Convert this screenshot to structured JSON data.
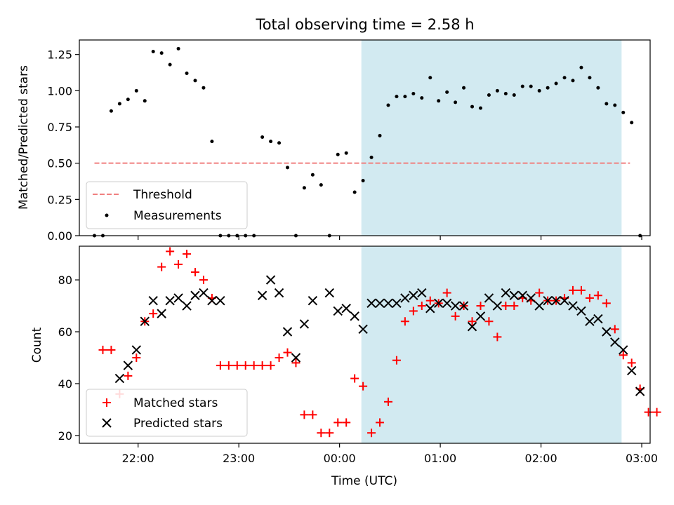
{
  "chart_data": [
    {
      "type": "scatter",
      "title": "Total observing time = 2.58 h",
      "xlabel": "",
      "ylabel": "Matched/Predicted stars",
      "ylim": [
        0,
        1.35
      ],
      "xlim": [
        "21:25",
        "03:05"
      ],
      "yticks": [
        "0.00",
        "0.25",
        "0.50",
        "0.75",
        "1.00",
        "1.25"
      ],
      "legend_position": "lower-left",
      "shaded_span": {
        "start": "00:13",
        "end": "02:48",
        "color": "#add8e6"
      },
      "threshold": {
        "name": "Threshold",
        "value": 0.5,
        "x_start": "21:34",
        "x_end": "02:53",
        "color": "#f08080"
      },
      "series": [
        {
          "name": "Measurements",
          "color": "#000000",
          "points": [
            [
              "21:34",
              0.0
            ],
            [
              "21:39",
              0.0
            ],
            [
              "21:44",
              0.86
            ],
            [
              "21:49",
              0.91
            ],
            [
              "21:54",
              0.94
            ],
            [
              "21:59",
              1.0
            ],
            [
              "22:04",
              0.93
            ],
            [
              "22:09",
              1.27
            ],
            [
              "22:14",
              1.26
            ],
            [
              "22:19",
              1.18
            ],
            [
              "22:24",
              1.29
            ],
            [
              "22:29",
              1.12
            ],
            [
              "22:34",
              1.07
            ],
            [
              "22:39",
              1.02
            ],
            [
              "22:44",
              0.65
            ],
            [
              "22:49",
              0.0
            ],
            [
              "22:54",
              0.0
            ],
            [
              "22:59",
              0.0
            ],
            [
              "23:04",
              0.0
            ],
            [
              "23:09",
              0.0
            ],
            [
              "23:14",
              0.68
            ],
            [
              "23:19",
              0.65
            ],
            [
              "23:24",
              0.64
            ],
            [
              "23:29",
              0.47
            ],
            [
              "23:34",
              0.0
            ],
            [
              "23:39",
              0.33
            ],
            [
              "23:44",
              0.42
            ],
            [
              "23:49",
              0.35
            ],
            [
              "23:54",
              0.0
            ],
            [
              "23:59",
              0.56
            ],
            [
              "00:04",
              0.57
            ],
            [
              "00:09",
              0.3
            ],
            [
              "00:14",
              0.38
            ],
            [
              "00:19",
              0.54
            ],
            [
              "00:24",
              0.69
            ],
            [
              "00:29",
              0.9
            ],
            [
              "00:34",
              0.96
            ],
            [
              "00:39",
              0.96
            ],
            [
              "00:44",
              0.98
            ],
            [
              "00:49",
              0.95
            ],
            [
              "00:54",
              1.09
            ],
            [
              "00:59",
              0.93
            ],
            [
              "01:04",
              0.99
            ],
            [
              "01:09",
              0.92
            ],
            [
              "01:14",
              1.02
            ],
            [
              "01:19",
              0.89
            ],
            [
              "01:24",
              0.88
            ],
            [
              "01:29",
              0.97
            ],
            [
              "01:34",
              1.0
            ],
            [
              "01:39",
              0.98
            ],
            [
              "01:44",
              0.97
            ],
            [
              "01:49",
              1.03
            ],
            [
              "01:54",
              1.03
            ],
            [
              "01:59",
              1.0
            ],
            [
              "02:04",
              1.02
            ],
            [
              "02:09",
              1.05
            ],
            [
              "02:14",
              1.09
            ],
            [
              "02:19",
              1.07
            ],
            [
              "02:24",
              1.16
            ],
            [
              "02:29",
              1.09
            ],
            [
              "02:34",
              1.02
            ],
            [
              "02:39",
              0.91
            ],
            [
              "02:44",
              0.9
            ],
            [
              "02:49",
              0.85
            ],
            [
              "02:54",
              0.78
            ],
            [
              "02:59",
              0.0
            ]
          ]
        }
      ]
    },
    {
      "type": "scatter",
      "title": "",
      "xlabel": "Time (UTC)",
      "ylabel": "Count",
      "ylim": [
        17,
        93
      ],
      "xlim": [
        "21:25",
        "03:05"
      ],
      "xticks": [
        "22:00",
        "23:00",
        "00:00",
        "01:00",
        "02:00",
        "03:00"
      ],
      "yticks": [
        "20",
        "40",
        "60",
        "80"
      ],
      "legend_position": "lower-left",
      "shaded_span": {
        "start": "00:13",
        "end": "02:48",
        "color": "#add8e6"
      },
      "series": [
        {
          "name": "Matched stars",
          "marker": "plus",
          "color": "#ff0000",
          "points": [
            [
              "21:39",
              53
            ],
            [
              "21:44",
              53
            ],
            [
              "21:49",
              36
            ],
            [
              "21:54",
              43
            ],
            [
              "21:59",
              50
            ],
            [
              "22:04",
              64
            ],
            [
              "22:09",
              67
            ],
            [
              "22:14",
              85
            ],
            [
              "22:19",
              91
            ],
            [
              "22:24",
              86
            ],
            [
              "22:29",
              90
            ],
            [
              "22:34",
              83
            ],
            [
              "22:39",
              80
            ],
            [
              "22:44",
              73
            ],
            [
              "22:49",
              47
            ],
            [
              "22:54",
              47
            ],
            [
              "22:59",
              47
            ],
            [
              "23:04",
              47
            ],
            [
              "23:09",
              47
            ],
            [
              "23:14",
              47
            ],
            [
              "23:19",
              47
            ],
            [
              "23:24",
              50
            ],
            [
              "23:29",
              52
            ],
            [
              "23:34",
              48
            ],
            [
              "23:39",
              28
            ],
            [
              "23:44",
              28
            ],
            [
              "23:49",
              21
            ],
            [
              "23:54",
              21
            ],
            [
              "23:59",
              25
            ],
            [
              "00:04",
              25
            ],
            [
              "00:09",
              42
            ],
            [
              "00:14",
              39
            ],
            [
              "00:19",
              21
            ],
            [
              "00:24",
              25
            ],
            [
              "00:29",
              33
            ],
            [
              "00:34",
              49
            ],
            [
              "00:39",
              64
            ],
            [
              "00:44",
              68
            ],
            [
              "00:49",
              70
            ],
            [
              "00:54",
              72
            ],
            [
              "00:59",
              71
            ],
            [
              "01:04",
              75
            ],
            [
              "01:09",
              66
            ],
            [
              "01:14",
              70
            ],
            [
              "01:19",
              64
            ],
            [
              "01:24",
              70
            ],
            [
              "01:29",
              64
            ],
            [
              "01:34",
              58
            ],
            [
              "01:39",
              70
            ],
            [
              "01:44",
              70
            ],
            [
              "01:49",
              73
            ],
            [
              "01:54",
              72
            ],
            [
              "01:59",
              75
            ],
            [
              "02:04",
              72
            ],
            [
              "02:09",
              72
            ],
            [
              "02:14",
              73
            ],
            [
              "02:19",
              76
            ],
            [
              "02:24",
              76
            ],
            [
              "02:29",
              73
            ],
            [
              "02:34",
              74
            ],
            [
              "02:39",
              71
            ],
            [
              "02:44",
              61
            ],
            [
              "02:49",
              51
            ],
            [
              "02:54",
              48
            ],
            [
              "02:59",
              38
            ],
            [
              "03:04",
              29
            ],
            [
              "03:09",
              29
            ]
          ]
        },
        {
          "name": "Predicted stars",
          "marker": "x",
          "color": "#000000",
          "points": [
            [
              "21:49",
              42
            ],
            [
              "21:54",
              47
            ],
            [
              "21:59",
              53
            ],
            [
              "22:04",
              64
            ],
            [
              "22:09",
              72
            ],
            [
              "22:14",
              67
            ],
            [
              "22:19",
              72
            ],
            [
              "22:24",
              73
            ],
            [
              "22:29",
              70
            ],
            [
              "22:34",
              74
            ],
            [
              "22:39",
              75
            ],
            [
              "22:44",
              72
            ],
            [
              "22:49",
              72
            ],
            [
              "23:14",
              74
            ],
            [
              "23:19",
              80
            ],
            [
              "23:24",
              75
            ],
            [
              "23:29",
              60
            ],
            [
              "23:34",
              50
            ],
            [
              "23:39",
              63
            ],
            [
              "23:44",
              72
            ],
            [
              "23:54",
              75
            ],
            [
              "23:59",
              68
            ],
            [
              "00:04",
              69
            ],
            [
              "00:09",
              66
            ],
            [
              "00:14",
              61
            ],
            [
              "00:19",
              71
            ],
            [
              "00:24",
              71
            ],
            [
              "00:29",
              71
            ],
            [
              "00:34",
              71
            ],
            [
              "00:39",
              73
            ],
            [
              "00:44",
              74
            ],
            [
              "00:49",
              75
            ],
            [
              "00:54",
              69
            ],
            [
              "00:59",
              71
            ],
            [
              "01:04",
              71
            ],
            [
              "01:09",
              70
            ],
            [
              "01:14",
              70
            ],
            [
              "01:19",
              62
            ],
            [
              "01:24",
              66
            ],
            [
              "01:29",
              73
            ],
            [
              "01:34",
              70
            ],
            [
              "01:39",
              75
            ],
            [
              "01:44",
              74
            ],
            [
              "01:49",
              74
            ],
            [
              "01:54",
              73
            ],
            [
              "01:59",
              70
            ],
            [
              "02:04",
              72
            ],
            [
              "02:09",
              72
            ],
            [
              "02:14",
              72
            ],
            [
              "02:19",
              70
            ],
            [
              "02:24",
              68
            ],
            [
              "02:29",
              64
            ],
            [
              "02:34",
              65
            ],
            [
              "02:39",
              60
            ],
            [
              "02:44",
              56
            ],
            [
              "02:49",
              53
            ],
            [
              "02:54",
              45
            ],
            [
              "02:59",
              37
            ]
          ]
        }
      ]
    }
  ]
}
